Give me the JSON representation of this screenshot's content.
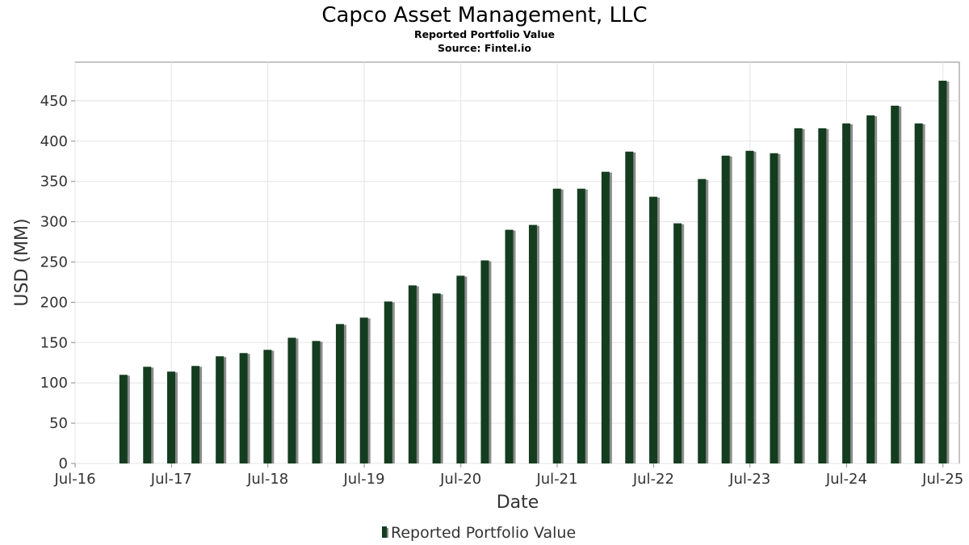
{
  "chart_data": {
    "type": "bar",
    "title": "Capco Asset Management, LLC",
    "subtitle": "Reported Portfolio Value",
    "source": "Source: Fintel.io",
    "xlabel": "Date",
    "ylabel": "USD (MM)",
    "xlim": [
      "2016-07-01",
      "2025-09-01"
    ],
    "ylim": [
      0,
      498
    ],
    "grid": true,
    "legend": "bottom-center",
    "x_ticks": [
      {
        "date": "2016-07-01",
        "label": "Jul-16"
      },
      {
        "date": "2017-07-01",
        "label": "Jul-17"
      },
      {
        "date": "2018-07-01",
        "label": "Jul-18"
      },
      {
        "date": "2019-07-01",
        "label": "Jul-19"
      },
      {
        "date": "2020-07-01",
        "label": "Jul-20"
      },
      {
        "date": "2021-07-01",
        "label": "Jul-21"
      },
      {
        "date": "2022-07-01",
        "label": "Jul-22"
      },
      {
        "date": "2023-07-01",
        "label": "Jul-23"
      },
      {
        "date": "2024-07-01",
        "label": "Jul-24"
      },
      {
        "date": "2025-07-01",
        "label": "Jul-25"
      }
    ],
    "y_ticks": [
      {
        "value": 0,
        "label": "0"
      },
      {
        "value": 50,
        "label": "50"
      },
      {
        "value": 100,
        "label": "100"
      },
      {
        "value": 150,
        "label": "150"
      },
      {
        "value": 200,
        "label": "200"
      },
      {
        "value": 250,
        "label": "250"
      },
      {
        "value": 300,
        "label": "300"
      },
      {
        "value": 350,
        "label": "350"
      },
      {
        "value": 400,
        "label": "400"
      },
      {
        "value": 450,
        "label": "450"
      }
    ],
    "series": [
      {
        "name": "Reported Portfolio Value",
        "color": "#143d1f",
        "shadow_color": "#8c8c8c",
        "points": [
          {
            "x": "2016-12-31",
            "y": 110
          },
          {
            "x": "2017-03-31",
            "y": 120
          },
          {
            "x": "2017-06-30",
            "y": 114
          },
          {
            "x": "2017-09-30",
            "y": 121
          },
          {
            "x": "2017-12-31",
            "y": 133
          },
          {
            "x": "2018-03-31",
            "y": 137
          },
          {
            "x": "2018-06-30",
            "y": 141
          },
          {
            "x": "2018-09-30",
            "y": 156
          },
          {
            "x": "2018-12-31",
            "y": 152
          },
          {
            "x": "2019-03-31",
            "y": 173
          },
          {
            "x": "2019-06-30",
            "y": 181
          },
          {
            "x": "2019-09-30",
            "y": 201
          },
          {
            "x": "2019-12-31",
            "y": 221
          },
          {
            "x": "2020-03-31",
            "y": 211
          },
          {
            "x": "2020-06-30",
            "y": 233
          },
          {
            "x": "2020-09-30",
            "y": 252
          },
          {
            "x": "2020-12-31",
            "y": 290
          },
          {
            "x": "2021-03-31",
            "y": 296
          },
          {
            "x": "2021-06-30",
            "y": 341
          },
          {
            "x": "2021-09-30",
            "y": 341
          },
          {
            "x": "2021-12-31",
            "y": 362
          },
          {
            "x": "2022-03-31",
            "y": 387
          },
          {
            "x": "2022-06-30",
            "y": 331
          },
          {
            "x": "2022-09-30",
            "y": 298
          },
          {
            "x": "2022-12-31",
            "y": 353
          },
          {
            "x": "2023-03-31",
            "y": 382
          },
          {
            "x": "2023-06-30",
            "y": 388
          },
          {
            "x": "2023-09-30",
            "y": 385
          },
          {
            "x": "2023-12-31",
            "y": 416
          },
          {
            "x": "2024-03-31",
            "y": 416
          },
          {
            "x": "2024-06-30",
            "y": 422
          },
          {
            "x": "2024-09-30",
            "y": 432
          },
          {
            "x": "2024-12-31",
            "y": 444
          },
          {
            "x": "2025-03-31",
            "y": 422
          },
          {
            "x": "2025-06-30",
            "y": 475
          }
        ]
      }
    ]
  }
}
